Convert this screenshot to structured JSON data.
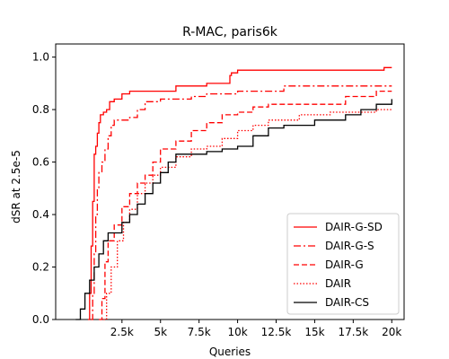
{
  "chart_data": {
    "type": "line",
    "title": "R-MAC, paris6k",
    "xlabel": "Queries",
    "ylabel": "dSR at 2.5e-5",
    "xlim": [
      -1800,
      20800
    ],
    "ylim": [
      0.0,
      1.05
    ],
    "xticks": [
      2500,
      5000,
      7500,
      10000,
      12500,
      15000,
      17500,
      20000
    ],
    "xtick_labels": [
      "2.5k",
      "5k",
      "7.5k",
      "10k",
      "12.5k",
      "15k",
      "17.5k",
      "20k"
    ],
    "yticks": [
      0.0,
      0.2,
      0.4,
      0.6,
      0.8,
      1.0
    ],
    "ytick_labels": [
      "0.0",
      "0.2",
      "0.4",
      "0.6",
      "0.8",
      "1.0"
    ],
    "grid": false,
    "legend": "lower-right",
    "series": [
      {
        "name": "DAIR-G-SD",
        "color": "#ff0000",
        "style": "solid",
        "points": [
          [
            300,
            0.0
          ],
          [
            400,
            0.1
          ],
          [
            500,
            0.28
          ],
          [
            600,
            0.45
          ],
          [
            700,
            0.63
          ],
          [
            800,
            0.66
          ],
          [
            900,
            0.71
          ],
          [
            1000,
            0.75
          ],
          [
            1100,
            0.78
          ],
          [
            1300,
            0.79
          ],
          [
            1500,
            0.8
          ],
          [
            1700,
            0.83
          ],
          [
            2000,
            0.84
          ],
          [
            2500,
            0.86
          ],
          [
            3000,
            0.87
          ],
          [
            5000,
            0.87
          ],
          [
            6000,
            0.89
          ],
          [
            8000,
            0.9
          ],
          [
            9500,
            0.93
          ],
          [
            9600,
            0.94
          ],
          [
            10000,
            0.95
          ],
          [
            19500,
            0.96
          ],
          [
            20000,
            0.96
          ]
        ]
      },
      {
        "name": "DAIR-G-S",
        "color": "#ff0000",
        "style": "dashdot",
        "points": [
          [
            500,
            0.0
          ],
          [
            600,
            0.1
          ],
          [
            700,
            0.25
          ],
          [
            800,
            0.4
          ],
          [
            900,
            0.5
          ],
          [
            1000,
            0.56
          ],
          [
            1200,
            0.6
          ],
          [
            1400,
            0.65
          ],
          [
            1600,
            0.7
          ],
          [
            1800,
            0.74
          ],
          [
            2000,
            0.76
          ],
          [
            3000,
            0.77
          ],
          [
            3500,
            0.8
          ],
          [
            4000,
            0.83
          ],
          [
            5000,
            0.84
          ],
          [
            7000,
            0.85
          ],
          [
            8000,
            0.86
          ],
          [
            9000,
            0.86
          ],
          [
            10000,
            0.87
          ],
          [
            12000,
            0.87
          ],
          [
            13000,
            0.89
          ],
          [
            20000,
            0.89
          ]
        ]
      },
      {
        "name": "DAIR-G",
        "color": "#ff0000",
        "style": "dashed",
        "points": [
          [
            1000,
            0.0
          ],
          [
            1200,
            0.08
          ],
          [
            1400,
            0.22
          ],
          [
            1600,
            0.3
          ],
          [
            2000,
            0.36
          ],
          [
            2500,
            0.43
          ],
          [
            3000,
            0.48
          ],
          [
            3500,
            0.52
          ],
          [
            4000,
            0.55
          ],
          [
            4500,
            0.6
          ],
          [
            5000,
            0.65
          ],
          [
            5500,
            0.65
          ],
          [
            6000,
            0.68
          ],
          [
            7000,
            0.72
          ],
          [
            8000,
            0.75
          ],
          [
            9000,
            0.78
          ],
          [
            10000,
            0.79
          ],
          [
            11000,
            0.81
          ],
          [
            12000,
            0.82
          ],
          [
            15000,
            0.82
          ],
          [
            17000,
            0.85
          ],
          [
            18000,
            0.85
          ],
          [
            19000,
            0.87
          ],
          [
            20000,
            0.87
          ]
        ]
      },
      {
        "name": "DAIR",
        "color": "#ff0000",
        "style": "dotted",
        "points": [
          [
            1300,
            0.0
          ],
          [
            1500,
            0.1
          ],
          [
            1800,
            0.2
          ],
          [
            2200,
            0.3
          ],
          [
            2600,
            0.37
          ],
          [
            3000,
            0.42
          ],
          [
            3500,
            0.48
          ],
          [
            4000,
            0.52
          ],
          [
            4500,
            0.55
          ],
          [
            5000,
            0.58
          ],
          [
            6000,
            0.62
          ],
          [
            7000,
            0.65
          ],
          [
            8000,
            0.66
          ],
          [
            9000,
            0.69
          ],
          [
            10000,
            0.72
          ],
          [
            11000,
            0.74
          ],
          [
            12000,
            0.76
          ],
          [
            14000,
            0.78
          ],
          [
            16000,
            0.79
          ],
          [
            18000,
            0.79
          ],
          [
            19000,
            0.8
          ],
          [
            20000,
            0.8
          ]
        ]
      },
      {
        "name": "DAIR-CS",
        "color": "#000000",
        "style": "solid",
        "points": [
          [
            -500,
            0.0
          ],
          [
            -200,
            0.04
          ],
          [
            100,
            0.1
          ],
          [
            400,
            0.15
          ],
          [
            700,
            0.2
          ],
          [
            1000,
            0.25
          ],
          [
            1300,
            0.3
          ],
          [
            1600,
            0.33
          ],
          [
            2000,
            0.33
          ],
          [
            2500,
            0.37
          ],
          [
            3000,
            0.4
          ],
          [
            3500,
            0.44
          ],
          [
            4000,
            0.48
          ],
          [
            4500,
            0.52
          ],
          [
            5000,
            0.56
          ],
          [
            5500,
            0.6
          ],
          [
            6000,
            0.63
          ],
          [
            7000,
            0.63
          ],
          [
            8000,
            0.64
          ],
          [
            9000,
            0.65
          ],
          [
            10000,
            0.66
          ],
          [
            11000,
            0.7
          ],
          [
            12000,
            0.73
          ],
          [
            13000,
            0.74
          ],
          [
            14000,
            0.74
          ],
          [
            15000,
            0.76
          ],
          [
            16000,
            0.76
          ],
          [
            17000,
            0.78
          ],
          [
            18000,
            0.8
          ],
          [
            19000,
            0.82
          ],
          [
            20000,
            0.84
          ]
        ]
      }
    ]
  }
}
